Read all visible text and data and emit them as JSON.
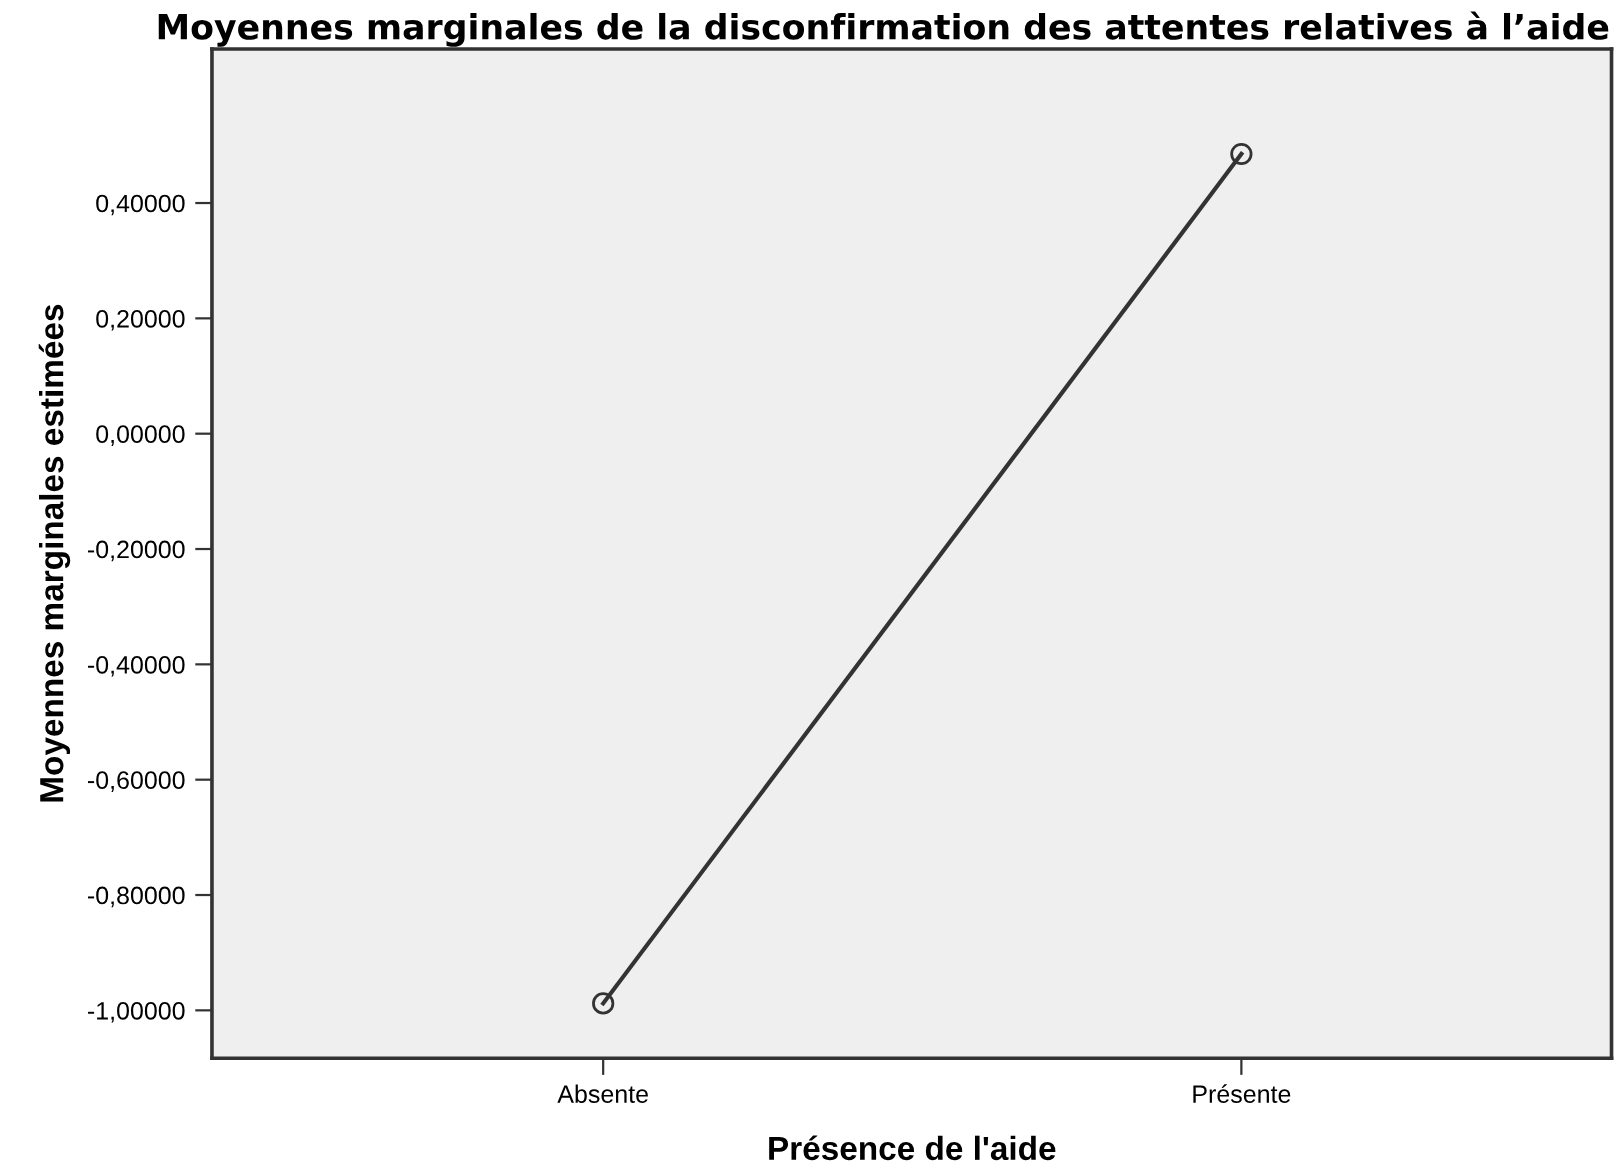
{
  "chart_data": {
    "type": "line",
    "title": "Moyennes marginales de la disconfirmation des attentes relatives à l’aide",
    "xlabel": "Présence de l'aide",
    "ylabel": "Moyennes marginales estimées",
    "categories": [
      "Absente",
      "Présente"
    ],
    "series": [
      {
        "color": "#333333",
        "values": [
          -0.988,
          0.485
        ]
      }
    ],
    "marker": "circle",
    "line_style": "solid",
    "grid": false,
    "legend": false,
    "ylim": [
      -1.083,
      0.667
    ],
    "yticks": [
      {
        "value": -1.0,
        "label": "-1,00000"
      },
      {
        "value": -0.8,
        "label": "-0,80000"
      },
      {
        "value": -0.6,
        "label": "-0,60000"
      },
      {
        "value": -0.4,
        "label": "-0,40000"
      },
      {
        "value": -0.2,
        "label": "-0,20000"
      },
      {
        "value": 0,
        "label": "0,00000"
      },
      {
        "value": 0.2,
        "label": "0,20000"
      },
      {
        "value": 0.4,
        "label": "0,40000"
      }
    ]
  }
}
